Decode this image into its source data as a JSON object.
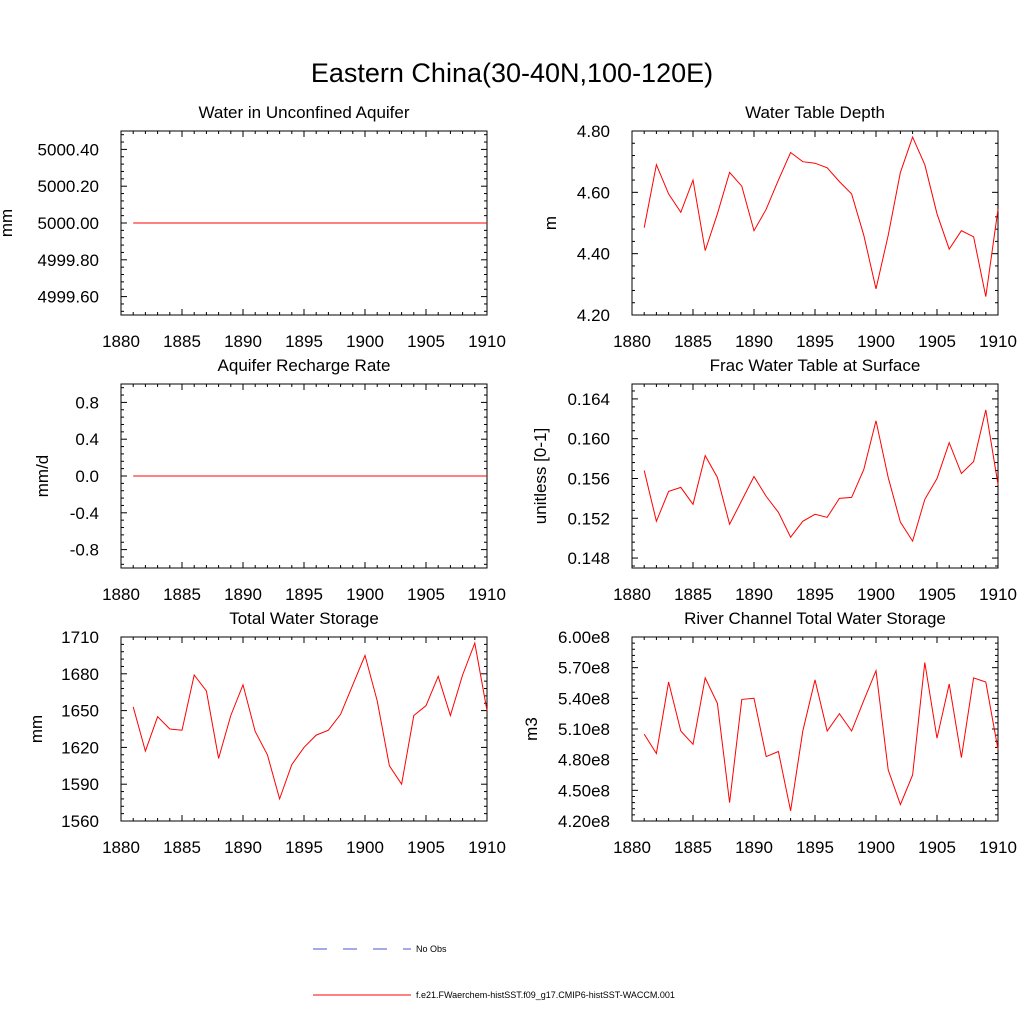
{
  "figure": {
    "title": "Eastern China(30-40N,100-120E)",
    "legend": [
      {
        "label": "No Obs",
        "color": "#4a55c8",
        "style": "dashed"
      },
      {
        "label": "f.e21.FWaerchem-histSST.f09_g17.CMIP6-histSST-WACCM.001",
        "color": "#ff0000",
        "style": "solid"
      }
    ]
  },
  "chart_data": [
    {
      "type": "line",
      "title": "Water in Unconfined Aquifer",
      "ylabel": "mm",
      "xlim": [
        1880,
        1910
      ],
      "ylim": [
        4999.5,
        5000.5
      ],
      "xticks": [
        1880,
        1885,
        1890,
        1895,
        1900,
        1905,
        1910
      ],
      "yticks": [
        4999.6,
        4999.8,
        5000.0,
        5000.2,
        5000.4
      ],
      "ytick_labels": [
        "4999.60",
        "4999.80",
        "5000.00",
        "5000.20",
        "5000.40"
      ],
      "series": [
        {
          "color": "#ff0000",
          "x": [
            1881,
            1882,
            1883,
            1884,
            1885,
            1886,
            1887,
            1888,
            1889,
            1890,
            1891,
            1892,
            1893,
            1894,
            1895,
            1896,
            1897,
            1898,
            1899,
            1900,
            1901,
            1902,
            1903,
            1904,
            1905,
            1906,
            1907,
            1908,
            1909,
            1910
          ],
          "y": [
            5000,
            5000,
            5000,
            5000,
            5000,
            5000,
            5000,
            5000,
            5000,
            5000,
            5000,
            5000,
            5000,
            5000,
            5000,
            5000,
            5000,
            5000,
            5000,
            5000,
            5000,
            5000,
            5000,
            5000,
            5000,
            5000,
            5000,
            5000,
            5000,
            5000
          ]
        }
      ]
    },
    {
      "type": "line",
      "title": "Water Table Depth",
      "ylabel": "m",
      "xlim": [
        1880,
        1910
      ],
      "ylim": [
        4.2,
        4.8
      ],
      "xticks": [
        1880,
        1885,
        1890,
        1895,
        1900,
        1905,
        1910
      ],
      "yticks": [
        4.2,
        4.4,
        4.6,
        4.8
      ],
      "ytick_labels": [
        "4.20",
        "4.40",
        "4.60",
        "4.80"
      ],
      "series": [
        {
          "color": "#ff0000",
          "x": [
            1881,
            1882,
            1883,
            1884,
            1885,
            1886,
            1887,
            1888,
            1889,
            1890,
            1891,
            1892,
            1893,
            1894,
            1895,
            1896,
            1897,
            1898,
            1899,
            1900,
            1901,
            1902,
            1903,
            1904,
            1905,
            1906,
            1907,
            1908,
            1909,
            1910
          ],
          "y": [
            4.485,
            4.69,
            4.595,
            4.535,
            4.64,
            4.41,
            4.53,
            4.665,
            4.62,
            4.475,
            4.545,
            4.64,
            4.73,
            4.7,
            4.695,
            4.68,
            4.635,
            4.595,
            4.46,
            4.285,
            4.46,
            4.665,
            4.78,
            4.69,
            4.53,
            4.415,
            4.475,
            4.455,
            4.26,
            4.545
          ]
        }
      ]
    },
    {
      "type": "line",
      "title": "Aquifer Recharge Rate",
      "ylabel": "mm/d",
      "xlim": [
        1880,
        1910
      ],
      "ylim": [
        -1.0,
        1.0
      ],
      "xticks": [
        1880,
        1885,
        1890,
        1895,
        1900,
        1905,
        1910
      ],
      "yticks": [
        -0.8,
        -0.4,
        0.0,
        0.4,
        0.8
      ],
      "ytick_labels": [
        "-0.8",
        "-0.4",
        "0.0",
        "0.4",
        "0.8"
      ],
      "series": [
        {
          "color": "#ff0000",
          "x": [
            1881,
            1882,
            1883,
            1884,
            1885,
            1886,
            1887,
            1888,
            1889,
            1890,
            1891,
            1892,
            1893,
            1894,
            1895,
            1896,
            1897,
            1898,
            1899,
            1900,
            1901,
            1902,
            1903,
            1904,
            1905,
            1906,
            1907,
            1908,
            1909,
            1910
          ],
          "y": [
            0,
            0,
            0,
            0,
            0,
            0,
            0,
            0,
            0,
            0,
            0,
            0,
            0,
            0,
            0,
            0,
            0,
            0,
            0,
            0,
            0,
            0,
            0,
            0,
            0,
            0,
            0,
            0,
            0,
            0
          ]
        }
      ]
    },
    {
      "type": "line",
      "title": "Frac Water Table at Surface",
      "ylabel": "unitless [0-1]",
      "xlim": [
        1880,
        1910
      ],
      "ylim": [
        0.147,
        0.1655
      ],
      "xticks": [
        1880,
        1885,
        1890,
        1895,
        1900,
        1905,
        1910
      ],
      "yticks": [
        0.148,
        0.152,
        0.156,
        0.16,
        0.164
      ],
      "ytick_labels": [
        "0.148",
        "0.152",
        "0.156",
        "0.160",
        "0.164"
      ],
      "series": [
        {
          "color": "#ff0000",
          "x": [
            1881,
            1882,
            1883,
            1884,
            1885,
            1886,
            1887,
            1888,
            1889,
            1890,
            1891,
            1892,
            1893,
            1894,
            1895,
            1896,
            1897,
            1898,
            1899,
            1900,
            1901,
            1902,
            1903,
            1904,
            1905,
            1906,
            1907,
            1908,
            1909,
            1910
          ],
          "y": [
            0.1568,
            0.1517,
            0.1547,
            0.1551,
            0.1534,
            0.1583,
            0.1561,
            0.1514,
            0.1538,
            0.1562,
            0.1542,
            0.1526,
            0.1501,
            0.1517,
            0.1524,
            0.1521,
            0.154,
            0.1541,
            0.1569,
            0.1618,
            0.1561,
            0.1516,
            0.1497,
            0.1539,
            0.156,
            0.1596,
            0.1565,
            0.1577,
            0.1629,
            0.1554
          ]
        }
      ]
    },
    {
      "type": "line",
      "title": "Total Water Storage",
      "ylabel": "mm",
      "xlim": [
        1880,
        1910
      ],
      "ylim": [
        1560,
        1710
      ],
      "xticks": [
        1880,
        1885,
        1890,
        1895,
        1900,
        1905,
        1910
      ],
      "yticks": [
        1560,
        1590,
        1620,
        1650,
        1680,
        1710
      ],
      "ytick_labels": [
        "1560",
        "1590",
        "1620",
        "1650",
        "1680",
        "1710"
      ],
      "series": [
        {
          "color": "#ff0000",
          "x": [
            1881,
            1882,
            1883,
            1884,
            1885,
            1886,
            1887,
            1888,
            1889,
            1890,
            1891,
            1892,
            1893,
            1894,
            1895,
            1896,
            1897,
            1898,
            1899,
            1900,
            1901,
            1902,
            1903,
            1904,
            1905,
            1906,
            1907,
            1908,
            1909,
            1910
          ],
          "y": [
            1653,
            1617,
            1645,
            1635,
            1634,
            1679,
            1666,
            1611,
            1646,
            1671,
            1633,
            1614,
            1578,
            1606,
            1620,
            1630,
            1634,
            1647,
            1671,
            1695,
            1658,
            1605,
            1590,
            1646,
            1654,
            1678,
            1646,
            1679,
            1705,
            1650
          ]
        }
      ]
    },
    {
      "type": "line",
      "title": "River Channel Total Water Storage",
      "ylabel": "m3",
      "xlim": [
        1880,
        1910
      ],
      "ylim": [
        420000000,
        600000000
      ],
      "xticks": [
        1880,
        1885,
        1890,
        1895,
        1900,
        1905,
        1910
      ],
      "yticks": [
        420000000,
        450000000,
        480000000,
        510000000,
        540000000,
        570000000,
        600000000
      ],
      "ytick_labels": [
        "4.20e8",
        "4.50e8",
        "4.80e8",
        "5.10e8",
        "5.40e8",
        "5.70e8",
        "6.00e8"
      ],
      "series": [
        {
          "color": "#ff0000",
          "x": [
            1881,
            1882,
            1883,
            1884,
            1885,
            1886,
            1887,
            1888,
            1889,
            1890,
            1891,
            1892,
            1893,
            1894,
            1895,
            1896,
            1897,
            1898,
            1899,
            1900,
            1901,
            1902,
            1903,
            1904,
            1905,
            1906,
            1907,
            1908,
            1909,
            1910
          ],
          "y": [
            505000000,
            486000000,
            556000000,
            508000000,
            495000000,
            560000000,
            535000000,
            438000000,
            539000000,
            540000000,
            483000000,
            488000000,
            430000000,
            508000000,
            558000000,
            508000000,
            525000000,
            508000000,
            538000000,
            567000000,
            470000000,
            436000000,
            465000000,
            575000000,
            501000000,
            554000000,
            482000000,
            560000000,
            556000000,
            490000000
          ]
        }
      ]
    }
  ]
}
